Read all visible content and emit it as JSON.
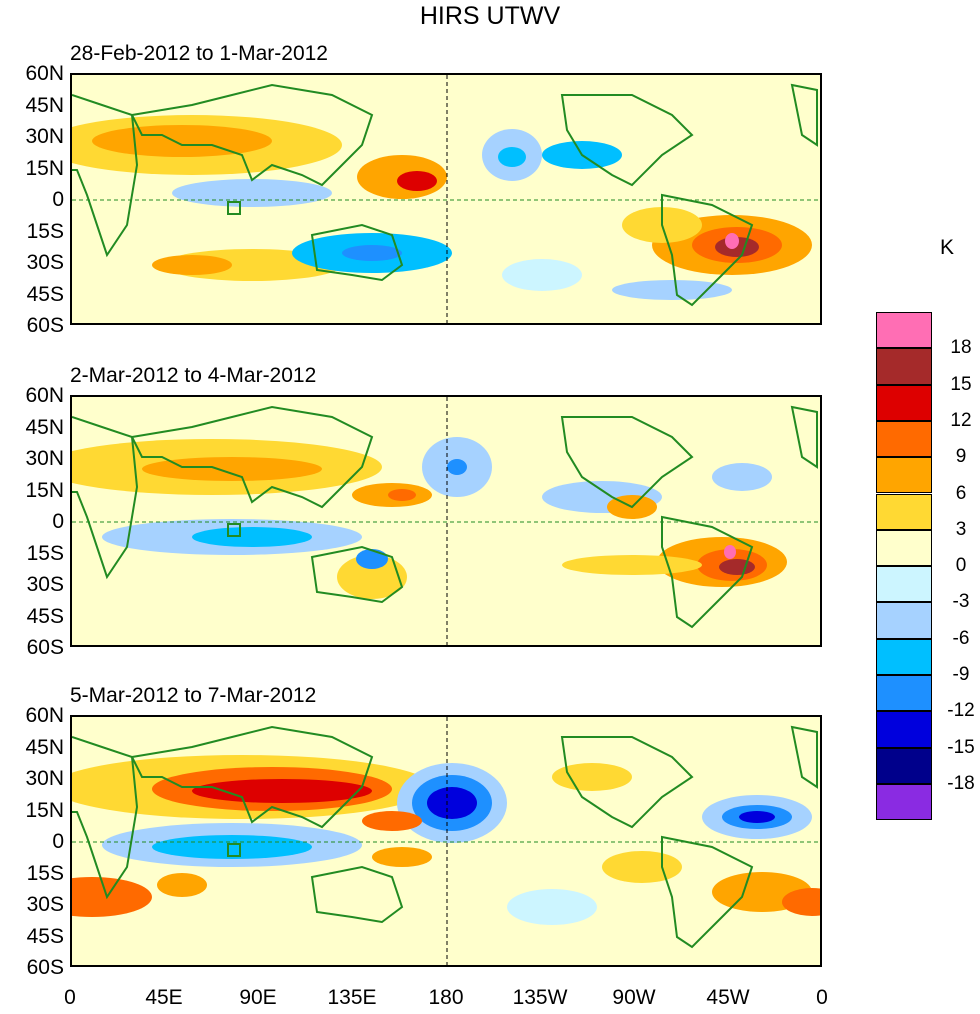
{
  "title": "HIRS UTWV",
  "panels": [
    {
      "period": "28-Feb-2012 to 1-Mar-2012"
    },
    {
      "period": "2-Mar-2012 to 4-Mar-2012"
    },
    {
      "period": "5-Mar-2012 to 7-Mar-2012"
    }
  ],
  "lat_labels": [
    "60N",
    "45N",
    "30N",
    "15N",
    "0",
    "15S",
    "30S",
    "45S",
    "60S"
  ],
  "lon_labels": [
    "0",
    "45E",
    "90E",
    "135E",
    "180",
    "135W",
    "90W",
    "45W",
    "0"
  ],
  "colorbar": {
    "units": "K",
    "labels": [
      "18",
      "15",
      "12",
      "9",
      "6",
      "3",
      "0",
      "-3",
      "-6",
      "-9",
      "-12",
      "-15",
      "-18"
    ],
    "colors": [
      "#ff6eb4",
      "#a52a2a",
      "#dd0000",
      "#ff6a00",
      "#ffa500",
      "#ffd933",
      "#ffffcc",
      "#ccf5ff",
      "#a6d2ff",
      "#00bfff",
      "#1e90ff",
      "#0000dd",
      "#00008b",
      "#8a2be2"
    ]
  },
  "coastline_color": "#228b22"
}
